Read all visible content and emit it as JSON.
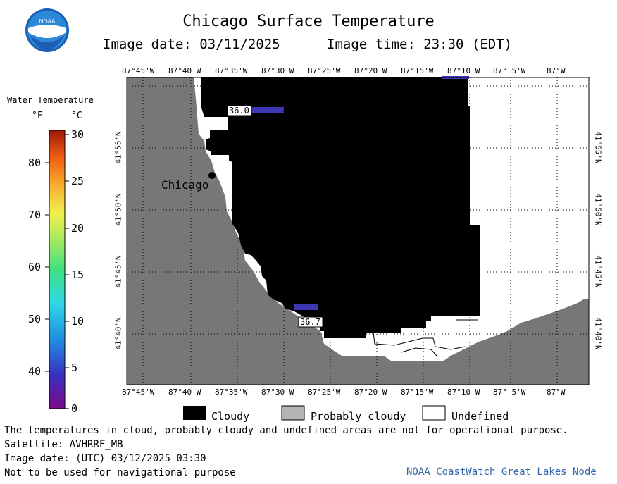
{
  "header": {
    "title": "Chicago Surface Temperature",
    "image_date": "Image date: 03/11/2025",
    "image_time": "Image time: 23:30 (EDT)"
  },
  "logo": {
    "text": "NOAA",
    "icon": "noaa-logo-icon"
  },
  "colorbar": {
    "title": "Water Temperature",
    "unit_f": "°F",
    "unit_c": "°C",
    "f_ticks": [
      "80",
      "70",
      "60",
      "50",
      "40"
    ],
    "c_ticks": [
      "30",
      "25",
      "20",
      "15",
      "10",
      "5",
      "0"
    ]
  },
  "map": {
    "lon_labels_top": [
      "87°45'W",
      "87°40'W",
      "87°35'W",
      "87°30'W",
      "87°25'W",
      "87°20'W",
      "87°15'W",
      "87°10'W",
      "87° 5'W",
      "87°W"
    ],
    "lon_labels_bottom": [
      "87°45'W",
      "87°40'W",
      "87°35'W",
      "87°30'W",
      "87°25'W",
      "87°20'W",
      "87°15'W",
      "87°10'W",
      "87° 5'W",
      "87°W"
    ],
    "lat_labels": [
      "41°55'N",
      "41°50'N",
      "41°45'N",
      "41°40'N"
    ],
    "city_label": "Chicago",
    "temp_labels": [
      "36.0",
      "36.7"
    ],
    "colors": {
      "land": "#777777",
      "cloud": "#000000",
      "undefined": "#ffffff",
      "water_cold": "#3c38b4"
    }
  },
  "key": {
    "cloudy": "Cloudy",
    "probably_cloudy": "Probably cloudy",
    "undefined": "Undefined"
  },
  "footer": {
    "disclaimer": "The temperatures in cloud, probably cloudy and undefined areas are not for operational purpose.",
    "satellite": "Satellite: AVHRRF_MB",
    "utc_date": "Image date: (UTC) 03/12/2025  03:30",
    "nav_warning": "Not to be used for navigational purpose",
    "credit": "NOAA CoastWatch Great Lakes Node"
  }
}
